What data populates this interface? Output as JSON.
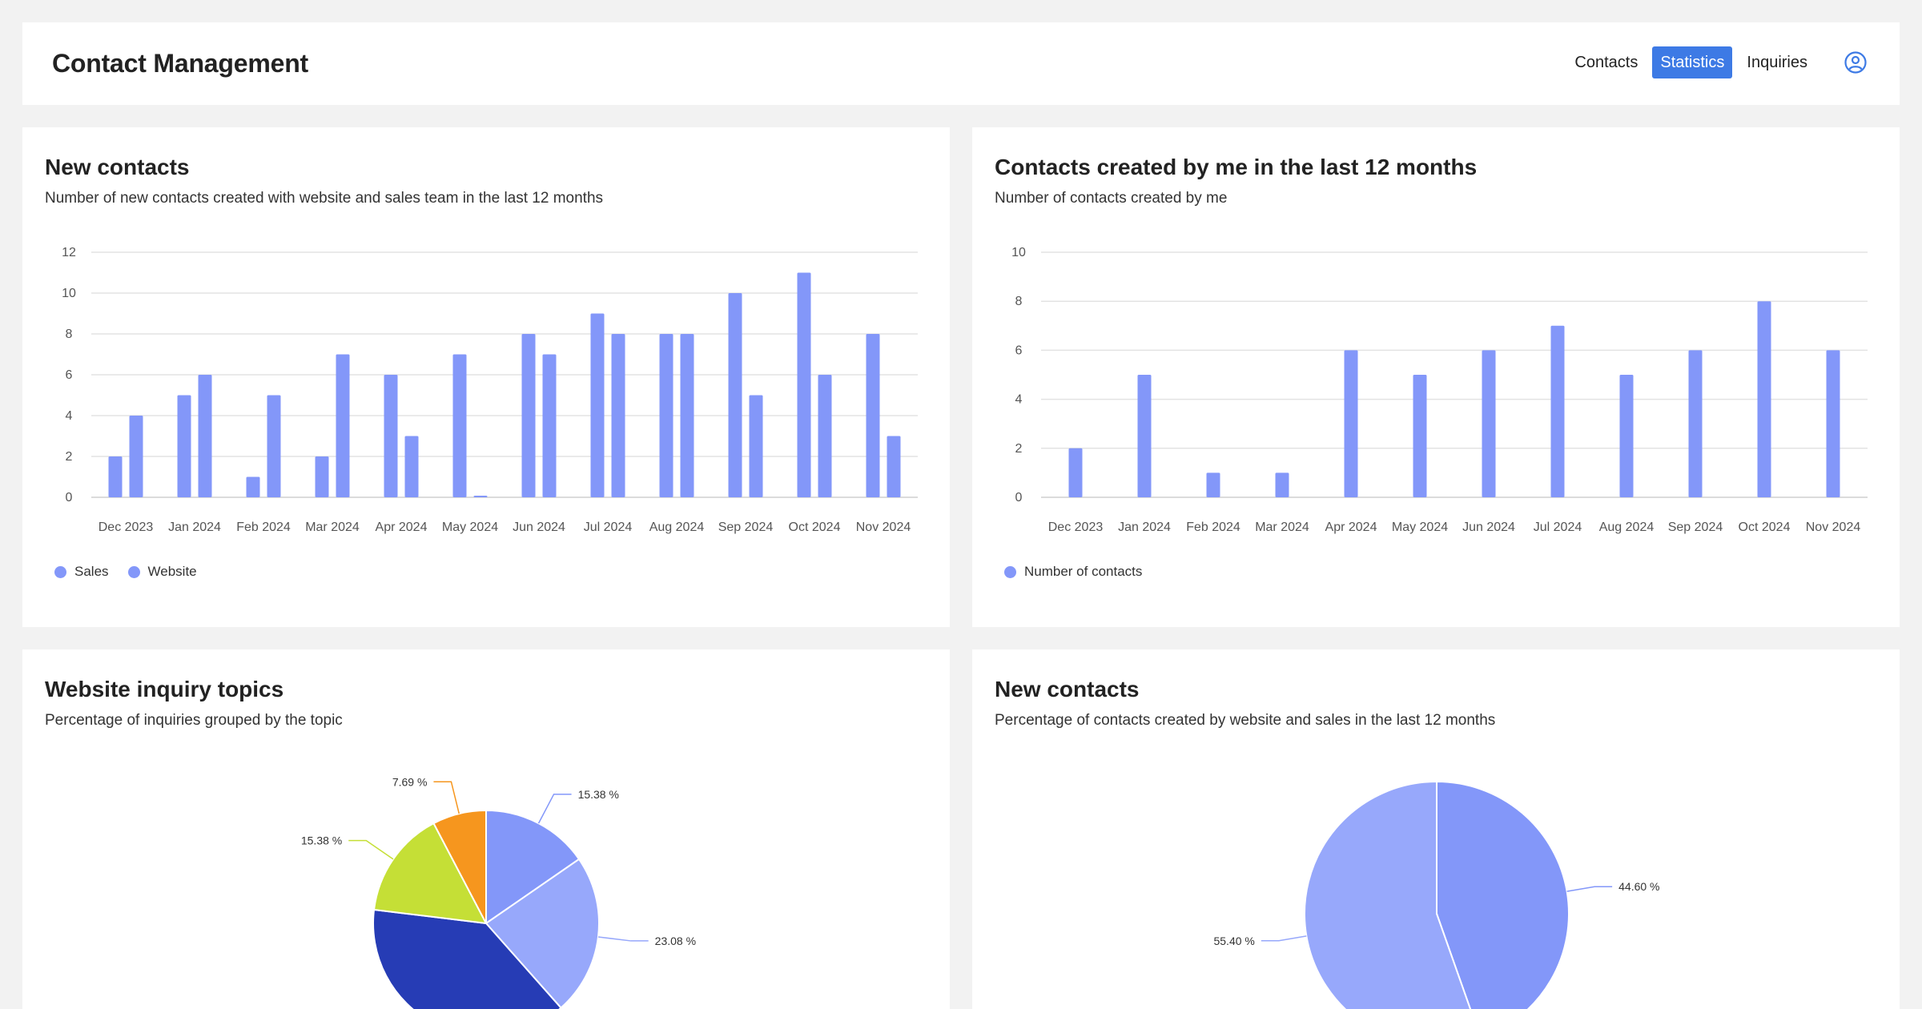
{
  "header": {
    "title": "Contact Management",
    "nav": [
      {
        "label": "Contacts",
        "active": false
      },
      {
        "label": "Statistics",
        "active": true
      },
      {
        "label": "Inquiries",
        "active": false
      }
    ],
    "user_icon": "user-circle-icon"
  },
  "colors": {
    "accent": "#3d7ae5",
    "bar": "#8397f9",
    "pie_dark_blue": "#263cb5",
    "pie_blue": "#8397f9",
    "pie_light_blue": "#97a8fb",
    "pie_lime": "#c5df36",
    "pie_orange": "#f6961e"
  },
  "cards": {
    "new_contacts_bar": {
      "title": "New contacts",
      "subtitle": "Number of new contacts created with website and sales team in the last 12 months"
    },
    "my_contacts_bar": {
      "title": "Contacts created by me in the last 12 months",
      "subtitle": "Number of contacts created by me"
    },
    "inquiry_pie": {
      "title": "Website inquiry topics",
      "subtitle": "Percentage of inquiries grouped by the topic"
    },
    "new_contacts_pie": {
      "title": "New contacts",
      "subtitle": "Percentage of contacts created by website and sales in the last 12 months"
    }
  },
  "chart_data": [
    {
      "type": "bar",
      "categories": [
        "Dec 2023",
        "Jan 2024",
        "Feb 2024",
        "Mar 2024",
        "Apr 2024",
        "May 2024",
        "Jun 2024",
        "Jul 2024",
        "Aug 2024",
        "Sep 2024",
        "Oct 2024",
        "Nov 2024"
      ],
      "series": [
        {
          "name": "Sales",
          "values": [
            2,
            5,
            1,
            2,
            6,
            7,
            8,
            9,
            8,
            10,
            11,
            8
          ]
        },
        {
          "name": "Website",
          "values": [
            4,
            6,
            5,
            7,
            3,
            0,
            7,
            8,
            8,
            5,
            6,
            3
          ]
        }
      ],
      "yticks": [
        0,
        2,
        4,
        6,
        8,
        10,
        12
      ],
      "ylim": [
        0,
        12
      ],
      "grid": true,
      "legend": "bottom-left"
    },
    {
      "type": "bar",
      "categories": [
        "Dec 2023",
        "Jan 2024",
        "Feb 2024",
        "Mar 2024",
        "Apr 2024",
        "May 2024",
        "Jun 2024",
        "Jul 2024",
        "Aug 2024",
        "Sep 2024",
        "Oct 2024",
        "Nov 2024"
      ],
      "series": [
        {
          "name": "Number of contacts",
          "values": [
            2,
            5,
            1,
            1,
            6,
            5,
            6,
            7,
            5,
            6,
            8,
            6
          ]
        }
      ],
      "yticks": [
        0,
        2,
        4,
        6,
        8,
        10
      ],
      "ylim": [
        0,
        10
      ],
      "grid": true,
      "legend": "bottom-left"
    },
    {
      "type": "pie",
      "slices": [
        {
          "label": "15.38 %",
          "value": 15.38,
          "color": "#8397f9"
        },
        {
          "label": "23.08 %",
          "value": 23.08,
          "color": "#97a8fb"
        },
        {
          "label": "",
          "value": 38.46,
          "color": "#263cb5"
        },
        {
          "label": "15.38 %",
          "value": 15.38,
          "color": "#c5df36"
        },
        {
          "label": "7.69 %",
          "value": 7.69,
          "color": "#f6961e"
        }
      ]
    },
    {
      "type": "pie",
      "slices": [
        {
          "label": "44.60 %",
          "value": 44.6,
          "color": "#8397f9"
        },
        {
          "label": "55.40 %",
          "value": 55.4,
          "color": "#97a8fb"
        }
      ]
    }
  ]
}
